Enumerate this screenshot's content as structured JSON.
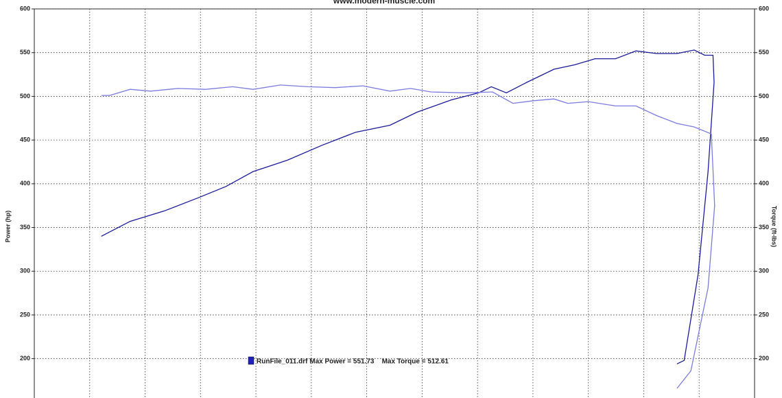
{
  "chart_data": {
    "type": "line",
    "title": "www.modern-muscle.com",
    "y_label": "Power (hp)",
    "y2_label": "Torque (ft-lbs)",
    "xlim": [
      0,
      13
    ],
    "xticks": [
      1,
      2,
      3,
      4,
      5,
      6,
      7,
      8,
      9,
      10,
      11,
      12
    ],
    "ylim": [
      155,
      600
    ],
    "yticks": [
      200,
      250,
      300,
      350,
      400,
      450,
      500,
      550,
      600
    ],
    "y2lim": [
      155,
      600
    ],
    "y2ticks": [
      200,
      250,
      300,
      350,
      400,
      450,
      500,
      550,
      600
    ],
    "grid": true,
    "legend": {
      "label": "RunFile_011.drf Max Power = 551.73    Max Torque = 512.61",
      "color": "#2020c0"
    },
    "series": [
      {
        "color": "#1a1a9a",
        "x": [
          1.21,
          1.73,
          2.35,
          2.96,
          3.46,
          3.95,
          4.57,
          5.19,
          5.8,
          6.42,
          6.91,
          7.53,
          8.02,
          8.25,
          8.52,
          8.89,
          9.38,
          9.75,
          10.12,
          10.49,
          10.86,
          11.23,
          11.6,
          11.91,
          12.1,
          12.25,
          12.27,
          12.16,
          11.98,
          11.73,
          11.6
        ],
        "values": [
          340,
          357,
          369,
          384,
          397,
          414,
          427,
          444,
          459,
          467,
          482,
          496,
          504,
          511,
          504,
          516,
          531,
          536,
          543,
          543,
          552,
          549,
          549,
          553,
          547,
          547,
          516,
          414,
          296,
          198,
          194
        ]
      },
      {
        "color": "#7b7be0",
        "axis": "y2",
        "x": [
          1.21,
          1.36,
          1.73,
          2.1,
          2.59,
          3.09,
          3.58,
          3.95,
          4.44,
          4.94,
          5.43,
          5.93,
          6.42,
          6.79,
          7.16,
          7.78,
          8.27,
          8.64,
          9.01,
          9.38,
          9.63,
          10.0,
          10.49,
          10.86,
          11.23,
          11.6,
          11.91,
          12.22,
          12.28,
          12.16,
          11.85,
          11.6
        ],
        "values": [
          501,
          501,
          508,
          506,
          509,
          508,
          511,
          508,
          513,
          511,
          510,
          512,
          506,
          509,
          505,
          504,
          505,
          492,
          495,
          497,
          492,
          494,
          489,
          489,
          478,
          469,
          465,
          457,
          375,
          281,
          186,
          166
        ]
      }
    ]
  }
}
